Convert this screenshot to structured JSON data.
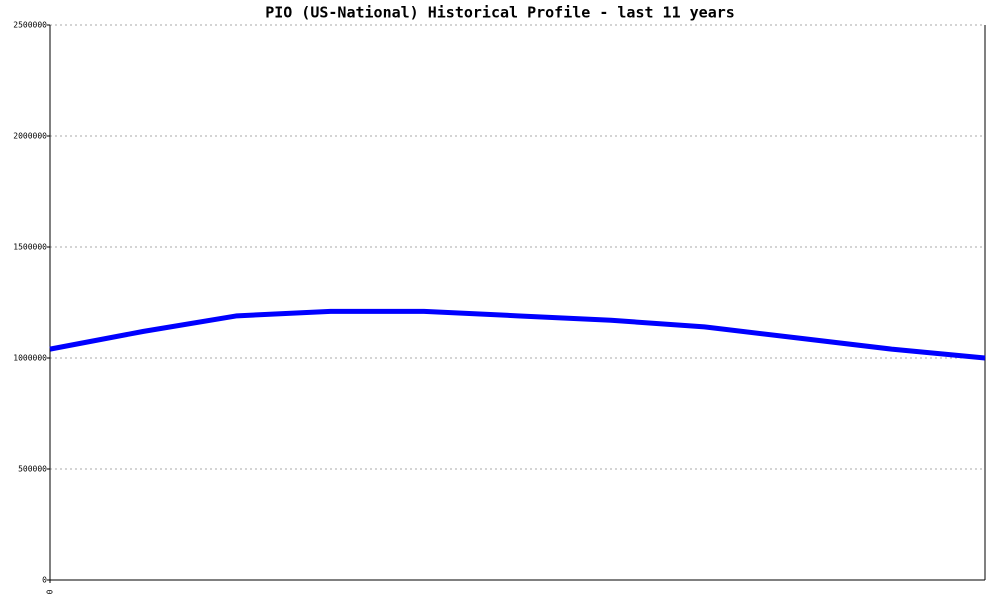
{
  "chart_data": {
    "type": "line",
    "title": "PIO (US-National) Historical Profile - last 11 years",
    "x": [
      0,
      1,
      2,
      3,
      4,
      5,
      6,
      7,
      8,
      9,
      10
    ],
    "xlim": [
      0,
      10
    ],
    "xticks": [
      0
    ],
    "series": [
      {
        "color": "#0000ff",
        "values": [
          1040000,
          1120000,
          1190000,
          1210000,
          1210000,
          1190000,
          1170000,
          1140000,
          1090000,
          1040000,
          1000000
        ]
      }
    ],
    "ylim": [
      0,
      2500000
    ],
    "yticks": [
      0,
      500000,
      1000000,
      1500000,
      2000000,
      2500000
    ],
    "grid": true
  }
}
